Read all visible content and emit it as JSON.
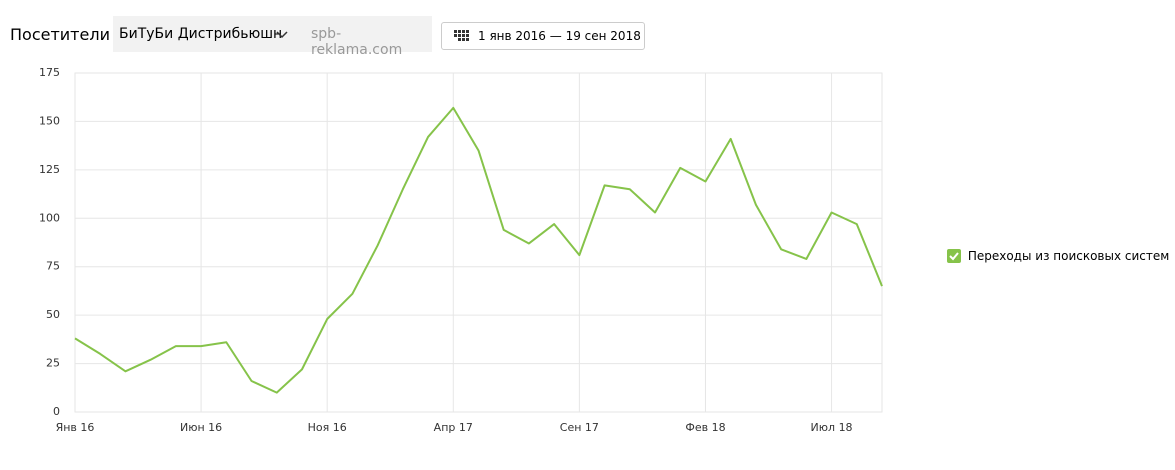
{
  "header": {
    "title": "Посетители",
    "segment": "БиТуБи Дистрибьюшн",
    "site": "spb-reklama.com",
    "period": "1 янв 2016 — 19 сен 2018"
  },
  "chart_data": {
    "type": "line",
    "categories": [
      "Янв 16",
      null,
      null,
      null,
      null,
      "Июн 16",
      null,
      null,
      null,
      null,
      "Ноя 16",
      null,
      null,
      null,
      null,
      "Апр 17",
      null,
      null,
      null,
      null,
      "Сен 17",
      null,
      null,
      null,
      null,
      "Фев 18",
      null,
      null,
      null,
      null,
      "Июл 18",
      null,
      null
    ],
    "series": [
      {
        "name": "Переходы из поисковых систем",
        "color": "#86c34a",
        "values": [
          38,
          30,
          21,
          27,
          34,
          34,
          36,
          16,
          10,
          22,
          48,
          61,
          86,
          115,
          142,
          157,
          135,
          94,
          87,
          97,
          81,
          117,
          115,
          103,
          126,
          119,
          141,
          107,
          84,
          79,
          103,
          97,
          65
        ]
      }
    ],
    "ylim": [
      0,
      175
    ],
    "yticks": [
      0,
      25,
      50,
      75,
      100,
      125,
      150,
      175
    ],
    "grid": true,
    "legend": "right"
  }
}
